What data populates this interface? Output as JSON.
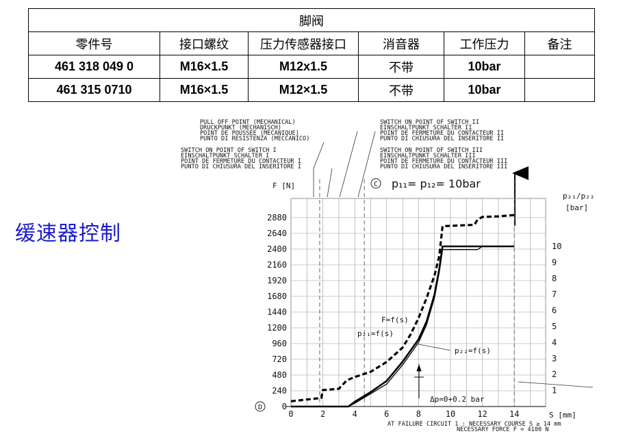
{
  "table": {
    "title": "脚阀",
    "headers": [
      "零件号",
      "接口螺纹",
      "压力传感器接口",
      "消音器",
      "工作压力",
      "备注"
    ],
    "rows": [
      [
        "461 318 049 0",
        "M16×1.5",
        "M12x1.5",
        "不带",
        "10bar",
        ""
      ],
      [
        "461 315 0710",
        "M16×1.5",
        "M12×1.5",
        "不带",
        "10bar",
        ""
      ]
    ]
  },
  "side_title": "缓速器控制",
  "notes": {
    "pull_off": [
      "PULL OFF POINT (MECHANICAL)",
      "DRUCKPUNKT (MECHANISCH)",
      "POINT DE POUSSEE (MECANIQUE)",
      "PUNTO DI RESISTENZA (MECCANICO)"
    ],
    "switch1": [
      "SWITCH ON POINT OF SWITCH I",
      "EINSCHALTPUNKT SCHALTER I",
      "POINT DE FERMETURE DU CONTACTEUR I",
      "PUNTO DI CHIUSURA DEL INSERITORE I"
    ],
    "switch2": [
      "SWITCH ON POINT OF SWITCH II",
      "EINSCHALTPUNKT SCHALTER II",
      "POINT DE FERMETURE DU CONTACTEUR II",
      "PUNTO DI CHIUSURA DEL INSERITORE II"
    ],
    "switch3": [
      "SWITCH ON POINT OF SWITCH III",
      "EINSCHALTPUNKT SCHALTER III",
      "POINT DE FERMETURE DU CONTACTEUR III",
      "PUNTO DI CHIUSURA DEL INSERITORE III"
    ]
  },
  "chart_data": {
    "type": "line",
    "title": "p₁₁= p₁₂= 10bar",
    "circle_c": "C",
    "circle_d": "D",
    "xlabel": "S [mm]",
    "ylabel_left": "F [N]",
    "ylabel_right_top": "p₂₁/p₂₂",
    "ylabel_right_unit": "[bar]",
    "xlim": [
      0,
      16
    ],
    "x_ticks": [
      "0",
      "2",
      "4",
      "6",
      "8",
      "10",
      "12",
      "14"
    ],
    "y_left_ticks": [
      "0",
      "240",
      "480",
      "720",
      "960",
      "1200",
      "1440",
      "1680",
      "1920",
      "2160",
      "2400",
      "2640",
      "2880"
    ],
    "y_right_ticks": [
      "1",
      "2",
      "3",
      "4",
      "5",
      "6",
      "7",
      "8",
      "9",
      "10"
    ],
    "annotations": {
      "F": "F=f(s)",
      "p21": "p₂₁=f(s)",
      "p22": "p₂₂=f(s)",
      "delta": "Δp=0+0.2 bar",
      "footer1": "AT FAILURE CIRCUIT 1 : NECESSARY COURSE S ≥ 14 mm",
      "footer2": "NECESSARY FORCE F = 4100 N"
    },
    "series": [
      {
        "name": "F=f(s)",
        "axis": "left",
        "style": "dashed",
        "x": [
          0,
          1.9,
          2,
          3,
          3.5,
          4,
          5,
          6,
          7,
          7.5,
          8,
          8.5,
          9,
          9.3,
          9.5,
          10.5,
          11.5,
          11.7,
          12,
          13,
          14
        ],
        "y": [
          80,
          130,
          250,
          270,
          400,
          450,
          530,
          680,
          900,
          1100,
          1350,
          1650,
          2000,
          2300,
          2750,
          2760,
          2770,
          2850,
          2890,
          2900,
          2920
        ]
      },
      {
        "name": "p₂₁=f(s)",
        "axis": "right",
        "style": "solid",
        "x": [
          0,
          3.6,
          4,
          5,
          6,
          7,
          8,
          8.5,
          9,
          9.3,
          9.5,
          10.5,
          12,
          13,
          14
        ],
        "y": [
          0,
          0,
          0.3,
          0.9,
          1.6,
          2.8,
          4.2,
          5.3,
          7.0,
          8.6,
          10.0,
          10.0,
          10.0,
          10.0,
          10.0
        ]
      },
      {
        "name": "p₂₂=f(s)",
        "axis": "right",
        "style": "solid",
        "x": [
          0,
          3.6,
          4,
          5,
          6,
          7,
          8,
          8.5,
          9,
          9.3,
          9.5,
          10.5,
          11.3,
          11.7,
          12,
          14
        ],
        "y": [
          0,
          0,
          0.2,
          0.8,
          1.4,
          2.6,
          4.0,
          5.1,
          6.8,
          8.4,
          9.8,
          9.8,
          9.8,
          9.8,
          10.0,
          10.0
        ]
      }
    ]
  }
}
